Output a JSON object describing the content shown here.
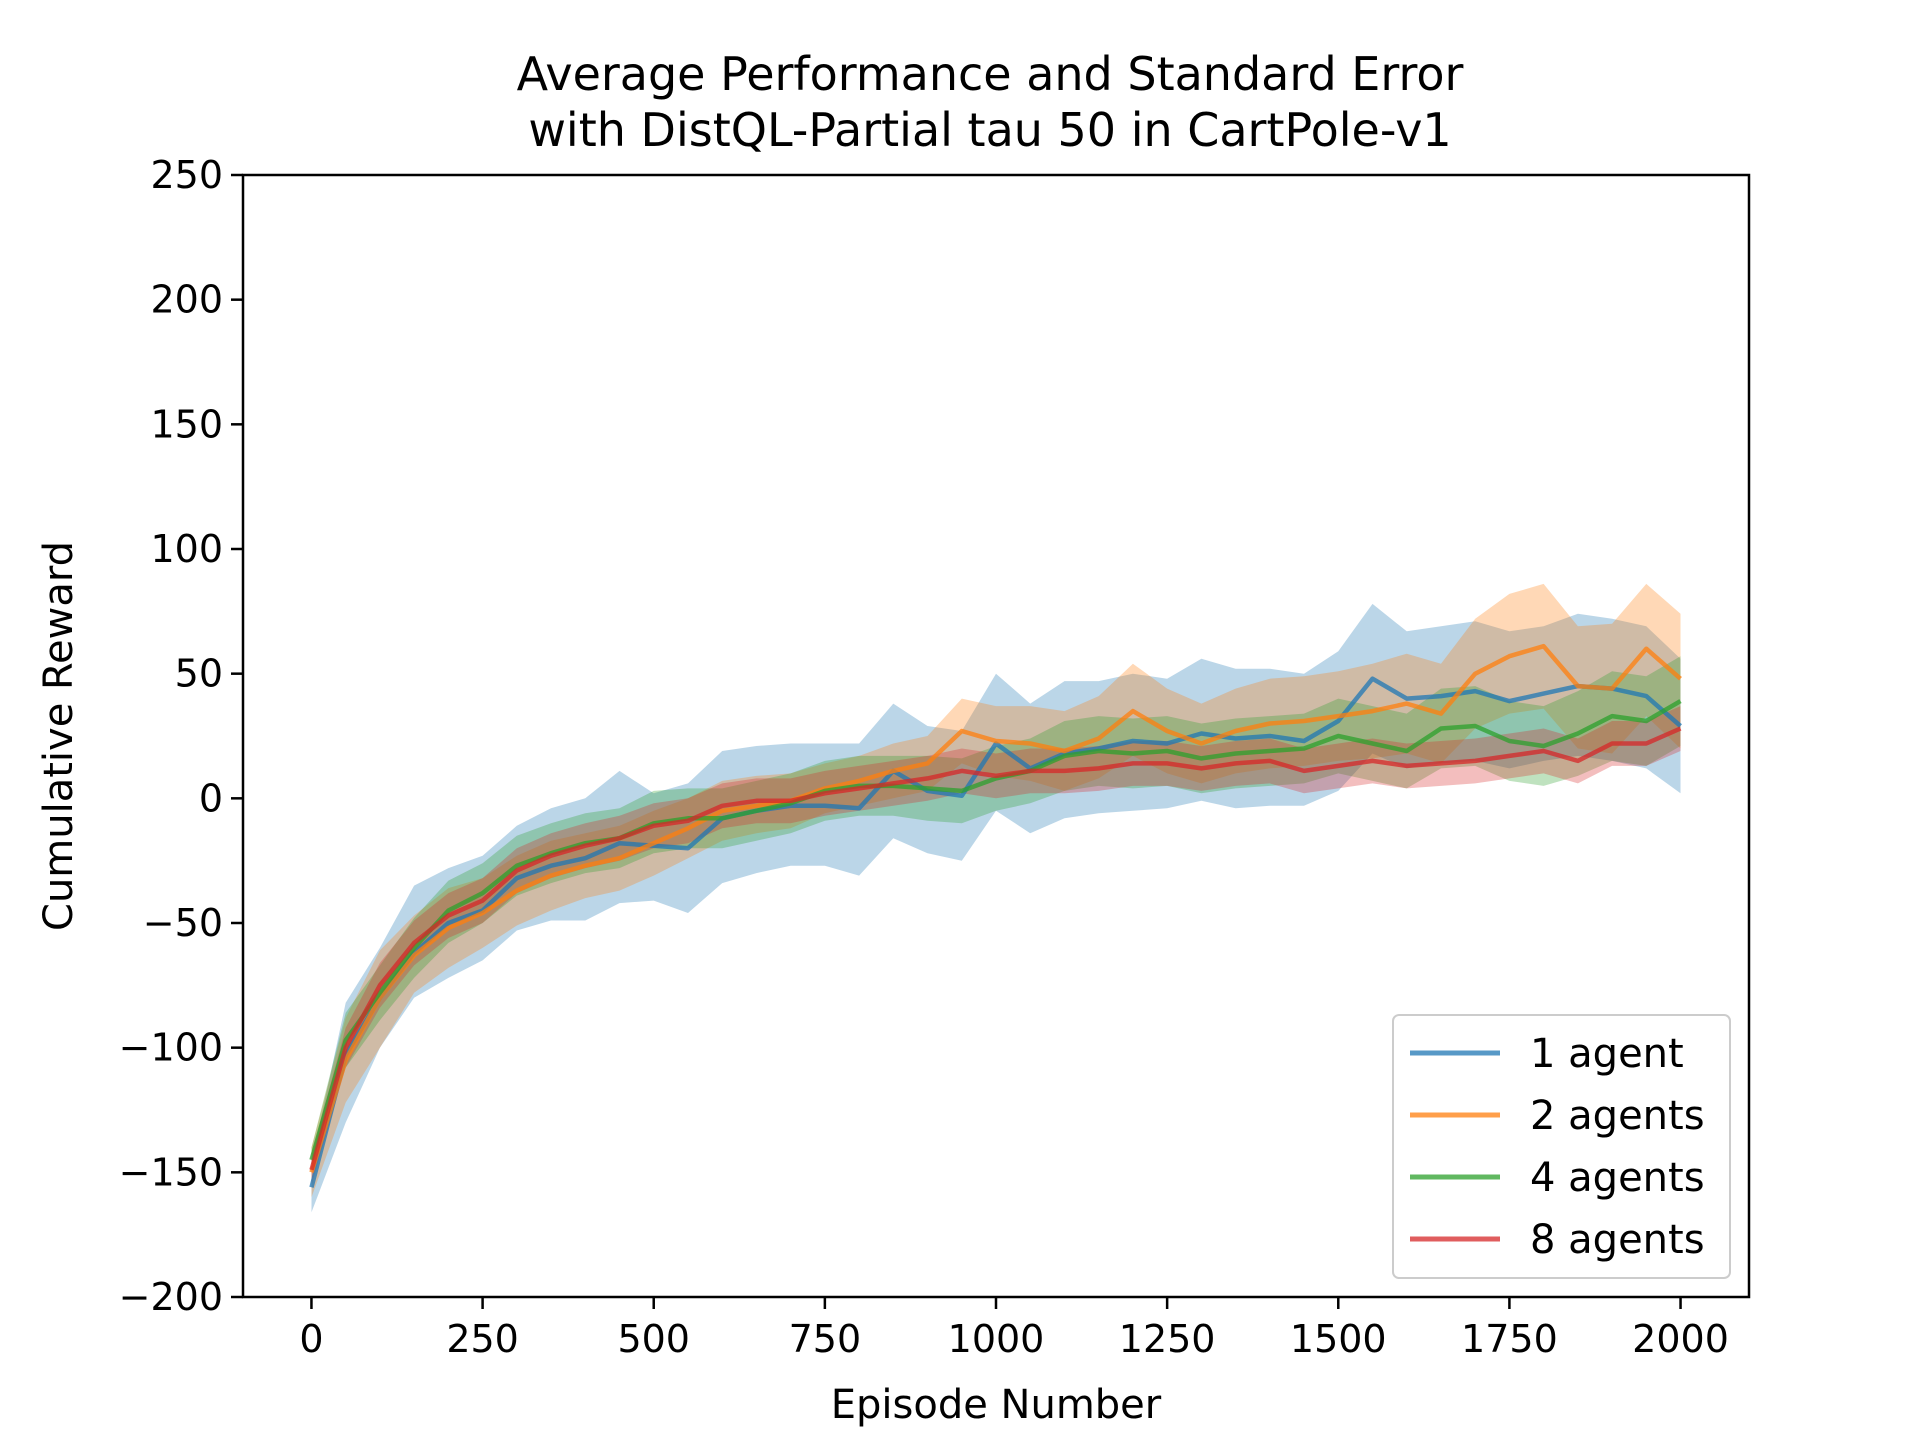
{
  "chart_data": {
    "type": "line",
    "title_line1": "Average Performance and Standard Error",
    "title_line2": "with DistQL-Partial tau 50 in CartPole-v1",
    "xlabel": "Episode Number",
    "ylabel": "Cumulative Reward",
    "xlim": [
      -100,
      2100
    ],
    "ylim": [
      -200,
      250
    ],
    "xticks": [
      0,
      250,
      500,
      750,
      1000,
      1250,
      1500,
      1750,
      2000
    ],
    "xtick_labels": [
      "0",
      "250",
      "500",
      "750",
      "1000",
      "1250",
      "1500",
      "1750",
      "2000"
    ],
    "yticks": [
      -200,
      -150,
      -100,
      -50,
      0,
      50,
      100,
      150,
      200,
      250
    ],
    "ytick_labels": [
      "−200",
      "−150",
      "−100",
      "−50",
      "0",
      "50",
      "100",
      "150",
      "200",
      "250"
    ],
    "grid": false,
    "legend_position": "lower-right",
    "x": [
      0,
      50,
      100,
      150,
      200,
      250,
      300,
      350,
      400,
      450,
      500,
      550,
      600,
      650,
      700,
      750,
      800,
      850,
      900,
      950,
      1000,
      1050,
      1100,
      1150,
      1200,
      1250,
      1300,
      1350,
      1400,
      1450,
      1500,
      1550,
      1600,
      1650,
      1700,
      1750,
      1800,
      1850,
      1900,
      1950,
      2000
    ],
    "series": [
      {
        "name": "1 agent",
        "color": "#1f77b4",
        "values": [
          -156,
          -103,
          -80,
          -62,
          -50,
          -45,
          -32,
          -27,
          -24,
          -18,
          -19,
          -20,
          -8,
          -5,
          -3,
          -3,
          -4,
          11,
          3,
          1,
          22,
          12,
          18,
          20,
          23,
          22,
          26,
          24,
          25,
          23,
          31,
          48,
          40,
          41,
          43,
          39,
          42,
          45,
          44,
          41,
          29
        ],
        "lower": [
          -166,
          -130,
          -100,
          -80,
          -72,
          -65,
          -53,
          -49,
          -49,
          -42,
          -41,
          -46,
          -34,
          -30,
          -27,
          -27,
          -31,
          -16,
          -22,
          -25,
          -5,
          -14,
          -8,
          -6,
          -5,
          -4,
          -1,
          -4,
          -3,
          -3,
          3,
          18,
          12,
          14,
          15,
          12,
          15,
          17,
          15,
          12,
          2
        ],
        "upper": [
          -146,
          -82,
          -60,
          -35,
          -28,
          -23,
          -11,
          -4,
          0,
          11,
          2,
          6,
          19,
          21,
          22,
          22,
          22,
          38,
          29,
          27,
          50,
          38,
          47,
          47,
          50,
          48,
          56,
          52,
          52,
          50,
          59,
          78,
          67,
          69,
          71,
          67,
          69,
          74,
          72,
          69,
          56
        ]
      },
      {
        "name": "2 agents",
        "color": "#ff7f0e",
        "values": [
          -150,
          -105,
          -80,
          -63,
          -52,
          -46,
          -37,
          -31,
          -27,
          -24,
          -18,
          -12,
          -5,
          -3,
          -1,
          4,
          7,
          11,
          14,
          27,
          23,
          22,
          19,
          24,
          35,
          27,
          22,
          27,
          30,
          31,
          33,
          35,
          38,
          34,
          50,
          57,
          61,
          45,
          44,
          60,
          48
        ],
        "lower": [
          -160,
          -122,
          -100,
          -78,
          -68,
          -60,
          -51,
          -45,
          -40,
          -37,
          -31,
          -24,
          -17,
          -14,
          -12,
          -6,
          -3,
          0,
          3,
          14,
          9,
          7,
          3,
          8,
          17,
          10,
          6,
          10,
          12,
          13,
          15,
          16,
          18,
          14,
          28,
          34,
          36,
          20,
          18,
          33,
          20
        ],
        "upper": [
          -140,
          -88,
          -61,
          -47,
          -36,
          -32,
          -23,
          -17,
          -14,
          -11,
          -5,
          0,
          7,
          9,
          10,
          14,
          17,
          22,
          25,
          40,
          37,
          37,
          35,
          41,
          54,
          44,
          38,
          44,
          48,
          49,
          51,
          54,
          58,
          54,
          72,
          82,
          86,
          69,
          70,
          86,
          74
        ]
      },
      {
        "name": "4 agents",
        "color": "#2ca02c",
        "values": [
          -145,
          -97,
          -78,
          -60,
          -45,
          -38,
          -27,
          -22,
          -18,
          -16,
          -10,
          -8,
          -8,
          -5,
          -2,
          3,
          5,
          5,
          4,
          3,
          8,
          11,
          17,
          19,
          18,
          19,
          16,
          18,
          19,
          20,
          25,
          22,
          19,
          28,
          29,
          23,
          21,
          26,
          33,
          31,
          39
        ],
        "lower": [
          -150,
          -108,
          -89,
          -72,
          -58,
          -50,
          -39,
          -34,
          -30,
          -28,
          -22,
          -20,
          -20,
          -17,
          -14,
          -9,
          -7,
          -7,
          -9,
          -10,
          -5,
          -2,
          3,
          5,
          4,
          5,
          2,
          4,
          5,
          6,
          10,
          7,
          4,
          12,
          13,
          7,
          5,
          9,
          15,
          13,
          21
        ],
        "upper": [
          -140,
          -86,
          -67,
          -48,
          -33,
          -26,
          -15,
          -10,
          -6,
          -4,
          3,
          4,
          4,
          7,
          10,
          15,
          17,
          17,
          17,
          16,
          21,
          24,
          31,
          33,
          32,
          33,
          30,
          32,
          33,
          34,
          40,
          37,
          34,
          44,
          45,
          39,
          37,
          43,
          51,
          49,
          57
        ]
      },
      {
        "name": "8 agents",
        "color": "#d62728",
        "values": [
          -149,
          -100,
          -75,
          -58,
          -47,
          -41,
          -29,
          -23,
          -19,
          -16,
          -11,
          -9,
          -3,
          -1,
          -1,
          2,
          4,
          6,
          8,
          11,
          9,
          11,
          11,
          12,
          14,
          14,
          12,
          14,
          15,
          11,
          13,
          15,
          13,
          14,
          15,
          17,
          19,
          15,
          22,
          22,
          28
        ],
        "lower": [
          -155,
          -108,
          -84,
          -67,
          -56,
          -50,
          -38,
          -32,
          -28,
          -25,
          -20,
          -18,
          -12,
          -10,
          -10,
          -7,
          -5,
          -3,
          -1,
          2,
          0,
          2,
          2,
          3,
          5,
          5,
          3,
          5,
          6,
          2,
          4,
          6,
          4,
          5,
          6,
          8,
          10,
          6,
          13,
          13,
          19
        ],
        "upper": [
          -143,
          -92,
          -66,
          -49,
          -38,
          -32,
          -20,
          -14,
          -10,
          -7,
          -2,
          0,
          6,
          8,
          8,
          11,
          13,
          15,
          17,
          20,
          18,
          20,
          20,
          21,
          23,
          23,
          21,
          23,
          24,
          20,
          22,
          24,
          22,
          23,
          24,
          26,
          28,
          24,
          31,
          31,
          37
        ]
      }
    ]
  }
}
